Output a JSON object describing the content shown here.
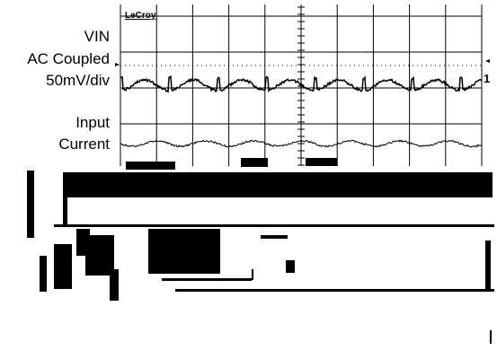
{
  "scope": {
    "brand": "LeCroy",
    "labels": [
      "VIN",
      "AC Coupled",
      "50mV/div",
      "Input",
      "Current"
    ],
    "channel_marker": "1"
  }
}
